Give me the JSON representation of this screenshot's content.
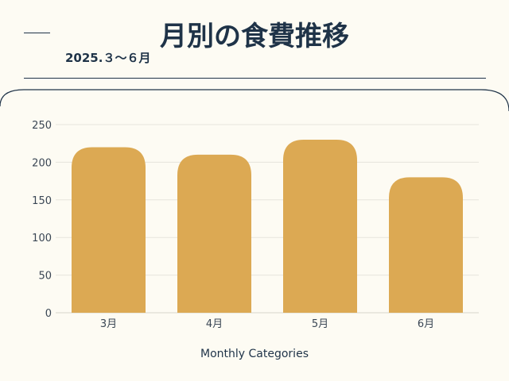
{
  "header": {
    "title": "月別の食費推移",
    "subtitle": "2025.３〜６月"
  },
  "colors": {
    "background": "#fdfbf3",
    "text": "#1f3348",
    "bar": "#dca953"
  },
  "chart_data": {
    "type": "bar",
    "categories": [
      "3月",
      "4月",
      "5月",
      "6月"
    ],
    "values": [
      220,
      210,
      230,
      180
    ],
    "xlabel": "Monthly Categories",
    "ylabel": "",
    "ylim": [
      0,
      250
    ],
    "yticks": [
      0,
      50,
      100,
      150,
      200,
      250
    ],
    "grid": true,
    "legend": "none"
  }
}
